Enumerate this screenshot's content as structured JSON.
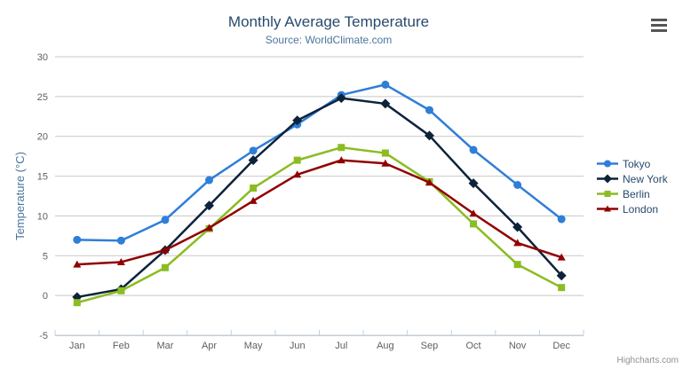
{
  "header": {
    "title": "Monthly Average Temperature",
    "subtitle": "Source: WorldClimate.com"
  },
  "menu": {
    "icon": "hamburger-icon"
  },
  "credits": {
    "label": "Highcharts.com"
  },
  "chart_data": {
    "type": "line",
    "title": "Monthly Average Temperature",
    "subtitle": "Source: WorldClimate.com",
    "categories": [
      "Jan",
      "Feb",
      "Mar",
      "Apr",
      "May",
      "Jun",
      "Jul",
      "Aug",
      "Sep",
      "Oct",
      "Nov",
      "Dec"
    ],
    "xlabel": "",
    "ylabel": "Temperature (°C)",
    "ylim": [
      -5,
      30
    ],
    "ytick_interval": 5,
    "grid": true,
    "legend_position": "right",
    "grid_color": "#c8c8c8",
    "axis_line_color": "#c0d0e0",
    "tick_label_color": "#606060",
    "axis_title_color": "#4d759e",
    "series": [
      {
        "name": "Tokyo",
        "color": "#2f7ed8",
        "marker": "circle",
        "values": [
          7.0,
          6.9,
          9.5,
          14.5,
          18.2,
          21.5,
          25.2,
          26.5,
          23.3,
          18.3,
          13.9,
          9.6
        ]
      },
      {
        "name": "New York",
        "color": "#0d233a",
        "marker": "diamond",
        "values": [
          -0.2,
          0.8,
          5.7,
          11.3,
          17.0,
          22.0,
          24.8,
          24.1,
          20.1,
          14.1,
          8.6,
          2.5
        ]
      },
      {
        "name": "Berlin",
        "color": "#8bbc21",
        "marker": "square",
        "values": [
          -0.9,
          0.6,
          3.5,
          8.4,
          13.5,
          17.0,
          18.6,
          17.9,
          14.3,
          9.0,
          3.9,
          1.0
        ]
      },
      {
        "name": "London",
        "color": "#910000",
        "marker": "triangle",
        "values": [
          3.9,
          4.2,
          5.7,
          8.5,
          11.9,
          15.2,
          17.0,
          16.6,
          14.2,
          10.3,
          6.6,
          4.8
        ]
      }
    ]
  }
}
